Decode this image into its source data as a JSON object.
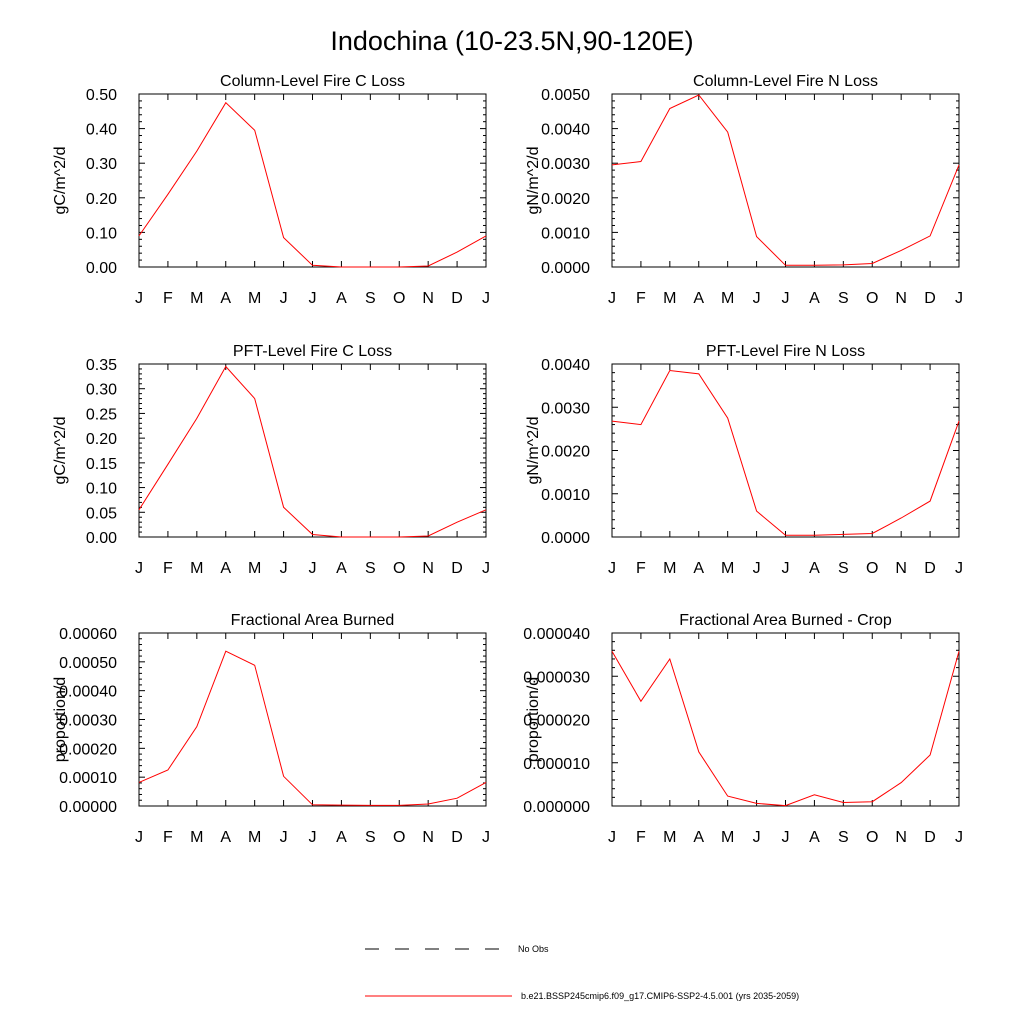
{
  "figure": {
    "title": "Indochina (10-23.5N,90-120E)"
  },
  "legend": {
    "items": [
      {
        "label": "No Obs",
        "style": "dashed",
        "color": "#000000"
      },
      {
        "label": "b.e21.BSSP245cmip6.f09_g17.CMIP6-SSP2-4.5.001 (yrs 2035-2059)",
        "style": "solid",
        "color": "#ff0000"
      }
    ]
  },
  "chart_data": [
    {
      "type": "line",
      "title": "Column-Level Fire C Loss",
      "ylabel": "gC/m^2/d",
      "xlabel": "",
      "categories": [
        "J",
        "F",
        "M",
        "A",
        "M",
        "J",
        "J",
        "A",
        "S",
        "O",
        "N",
        "D",
        "J"
      ],
      "ylim": [
        0,
        0.5
      ],
      "yticks": [
        "0.00",
        "0.10",
        "0.20",
        "0.30",
        "0.40",
        "0.50"
      ],
      "series": [
        {
          "color": "#ff0000",
          "values": [
            0.09,
            0.21,
            0.335,
            0.475,
            0.395,
            0.085,
            0.005,
            0.0,
            0.0,
            0.0,
            0.003,
            0.043,
            0.09
          ]
        }
      ]
    },
    {
      "type": "line",
      "title": "Column-Level Fire N Loss",
      "ylabel": "gN/m^2/d",
      "xlabel": "",
      "categories": [
        "J",
        "F",
        "M",
        "A",
        "M",
        "J",
        "J",
        "A",
        "S",
        "O",
        "N",
        "D",
        "J"
      ],
      "ylim": [
        0,
        0.005
      ],
      "yticks": [
        "0.0000",
        "0.0010",
        "0.0020",
        "0.0030",
        "0.0040",
        "0.0050"
      ],
      "series": [
        {
          "color": "#ff0000",
          "values": [
            0.00295,
            0.00305,
            0.00458,
            0.00497,
            0.0039,
            0.00088,
            5e-05,
            5e-05,
            6e-05,
            0.0001,
            0.00048,
            0.0009,
            0.00295
          ]
        }
      ]
    },
    {
      "type": "line",
      "title": "PFT-Level Fire C Loss",
      "ylabel": "gC/m^2/d",
      "xlabel": "",
      "categories": [
        "J",
        "F",
        "M",
        "A",
        "M",
        "J",
        "J",
        "A",
        "S",
        "O",
        "N",
        "D",
        "J"
      ],
      "ylim": [
        0,
        0.35
      ],
      "yticks": [
        "0.00",
        "0.05",
        "0.10",
        "0.15",
        "0.20",
        "0.25",
        "0.30",
        "0.35"
      ],
      "series": [
        {
          "color": "#ff0000",
          "values": [
            0.055,
            0.147,
            0.24,
            0.345,
            0.28,
            0.06,
            0.005,
            0.0,
            0.0,
            0.0,
            0.002,
            0.03,
            0.055
          ]
        }
      ]
    },
    {
      "type": "line",
      "title": "PFT-Level Fire N Loss",
      "ylabel": "gN/m^2/d",
      "xlabel": "",
      "categories": [
        "J",
        "F",
        "M",
        "A",
        "M",
        "J",
        "J",
        "A",
        "S",
        "O",
        "N",
        "D",
        "J"
      ],
      "ylim": [
        0,
        0.004
      ],
      "yticks": [
        "0.0000",
        "0.0010",
        "0.0020",
        "0.0030",
        "0.0040"
      ],
      "series": [
        {
          "color": "#ff0000",
          "values": [
            0.00268,
            0.0026,
            0.00385,
            0.00377,
            0.00275,
            0.0006,
            4e-05,
            4e-05,
            6e-05,
            8e-05,
            0.00044,
            0.00083,
            0.00268
          ]
        }
      ]
    },
    {
      "type": "line",
      "title": "Fractional Area Burned",
      "ylabel": "proportion/d",
      "xlabel": "",
      "categories": [
        "J",
        "F",
        "M",
        "A",
        "M",
        "J",
        "J",
        "A",
        "S",
        "O",
        "N",
        "D",
        "J"
      ],
      "ylim": [
        0,
        0.0006
      ],
      "yticks": [
        "0.00000",
        "0.00010",
        "0.00020",
        "0.00030",
        "0.00040",
        "0.00050",
        "0.00060"
      ],
      "series": [
        {
          "color": "#ff0000",
          "values": [
            8.2e-05,
            0.000125,
            0.000275,
            0.000537,
            0.000488,
            0.000103,
            4e-06,
            3e-06,
            2e-06,
            2e-06,
            7e-06,
            2.7e-05,
            8.2e-05
          ]
        }
      ]
    },
    {
      "type": "line",
      "title": "Fractional Area Burned - Crop",
      "ylabel": "proportion/d",
      "xlabel": "",
      "categories": [
        "J",
        "F",
        "M",
        "A",
        "M",
        "J",
        "J",
        "A",
        "S",
        "O",
        "N",
        "D",
        "J"
      ],
      "ylim": [
        0,
        4e-05
      ],
      "yticks": [
        "0.000000",
        "0.000010",
        "0.000020",
        "0.000030",
        "0.000040"
      ],
      "series": [
        {
          "color": "#ff0000",
          "values": [
            3.58e-05,
            2.42e-05,
            3.4e-05,
            1.25e-05,
            2.3e-06,
            6e-07,
            1e-07,
            2.6e-06,
            8e-07,
            1e-06,
            5.4e-06,
            1.18e-05,
            3.58e-05
          ]
        }
      ]
    }
  ]
}
